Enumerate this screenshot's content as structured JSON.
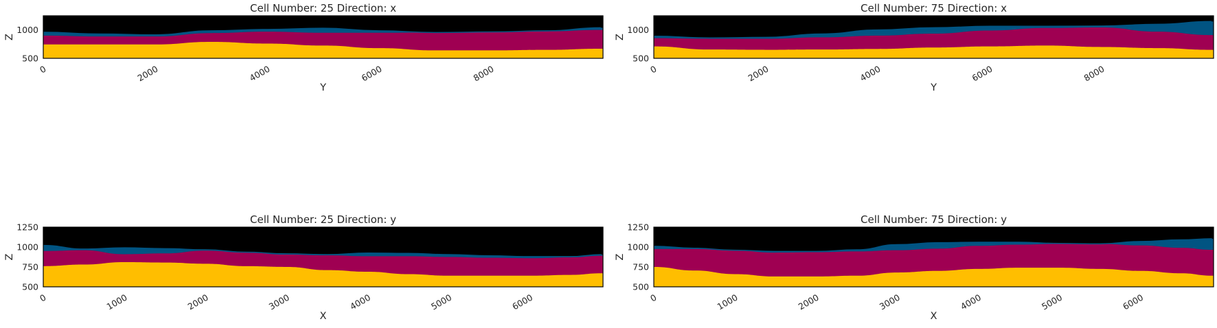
{
  "colors": {
    "background": "#000000",
    "layer_blue": "#015482",
    "layer_crimson": "#9f0052",
    "layer_yellow": "#ffbe00",
    "axis": "#000000",
    "text": "#262626"
  },
  "chart_data": [
    {
      "type": "area",
      "title": "Cell Number: 25 Direction: x",
      "xlabel": "Y",
      "ylabel": "Z",
      "xlim": [
        0,
        10000
      ],
      "ylim": [
        500,
        1250
      ],
      "xticks": [
        "0",
        "2000",
        "4000",
        "6000",
        "8000"
      ],
      "yticks": [
        "500",
        "1000"
      ],
      "grid": false,
      "x": [
        0,
        1000,
        2000,
        3000,
        4000,
        5000,
        6000,
        7000,
        8000,
        9000,
        9960
      ],
      "series": [
        {
          "color": "layer_blue",
          "top": [
            960,
            930,
            915,
            985,
            1010,
            1030,
            985,
            955,
            965,
            985,
            1040
          ]
        },
        {
          "color": "layer_crimson",
          "top": [
            900,
            885,
            885,
            945,
            970,
            950,
            950,
            955,
            960,
            975,
            1000
          ]
        },
        {
          "color": "layer_yellow",
          "top": [
            745,
            745,
            745,
            790,
            760,
            725,
            680,
            640,
            640,
            650,
            670
          ]
        }
      ]
    },
    {
      "type": "area",
      "title": "Cell Number: 75 Direction: x",
      "xlabel": "Y",
      "ylabel": "Z",
      "xlim": [
        0,
        10000
      ],
      "ylim": [
        500,
        1250
      ],
      "xticks": [
        "0",
        "2000",
        "4000",
        "6000",
        "8000"
      ],
      "yticks": [
        "500",
        "1000"
      ],
      "grid": false,
      "x": [
        0,
        1000,
        2000,
        3000,
        4000,
        5000,
        6000,
        7000,
        8000,
        9000,
        9960
      ],
      "series": [
        {
          "color": "layer_blue",
          "top": [
            890,
            860,
            870,
            930,
            1000,
            1040,
            1065,
            1065,
            1070,
            1100,
            1150
          ]
        },
        {
          "color": "layer_crimson",
          "top": [
            855,
            845,
            845,
            870,
            900,
            935,
            990,
            1035,
            1045,
            970,
            910
          ]
        },
        {
          "color": "layer_yellow",
          "top": [
            710,
            655,
            650,
            655,
            665,
            690,
            710,
            725,
            700,
            680,
            650
          ]
        }
      ]
    },
    {
      "type": "area",
      "title": "Cell Number: 25 Direction: y",
      "xlabel": "X",
      "ylabel": "Z",
      "xlim": [
        0,
        6900
      ],
      "ylim": [
        500,
        1250
      ],
      "xticks": [
        "0",
        "1000",
        "2000",
        "3000",
        "4000",
        "5000",
        "6000"
      ],
      "yticks": [
        "500",
        "750",
        "1000",
        "1250"
      ],
      "grid": false,
      "x": [
        0,
        500,
        1000,
        1500,
        2000,
        2500,
        3000,
        3500,
        4000,
        4500,
        5000,
        5500,
        6000,
        6500,
        6880
      ],
      "series": [
        {
          "color": "layer_blue",
          "top": [
            1020,
            975,
            990,
            980,
            965,
            935,
            915,
            905,
            925,
            920,
            905,
            890,
            880,
            880,
            905
          ]
        },
        {
          "color": "layer_crimson",
          "top": [
            950,
            960,
            910,
            920,
            955,
            930,
            905,
            895,
            885,
            885,
            875,
            865,
            860,
            870,
            890
          ]
        },
        {
          "color": "layer_yellow",
          "top": [
            760,
            780,
            810,
            805,
            790,
            760,
            750,
            710,
            690,
            660,
            640,
            640,
            640,
            650,
            670
          ]
        }
      ]
    },
    {
      "type": "area",
      "title": "Cell Number: 75 Direction: y",
      "xlabel": "X",
      "ylabel": "Z",
      "xlim": [
        0,
        6900
      ],
      "ylim": [
        500,
        1250
      ],
      "xticks": [
        "0",
        "1000",
        "2000",
        "3000",
        "4000",
        "5000",
        "6000"
      ],
      "yticks": [
        "500",
        "750",
        "1000",
        "1250"
      ],
      "grid": false,
      "x": [
        0,
        500,
        1000,
        1500,
        2000,
        2500,
        3000,
        3500,
        4000,
        4500,
        5000,
        5500,
        6000,
        6500,
        6880
      ],
      "series": [
        {
          "color": "layer_blue",
          "top": [
            1010,
            985,
            960,
            945,
            945,
            965,
            1030,
            1055,
            1060,
            1060,
            1045,
            1040,
            1070,
            1090,
            1105
          ]
        },
        {
          "color": "layer_crimson",
          "top": [
            975,
            975,
            955,
            930,
            935,
            945,
            960,
            980,
            1015,
            1030,
            1040,
            1040,
            1020,
            990,
            965
          ]
        },
        {
          "color": "layer_yellow",
          "top": [
            750,
            705,
            660,
            630,
            630,
            640,
            680,
            700,
            725,
            740,
            740,
            725,
            700,
            670,
            640
          ]
        }
      ]
    }
  ]
}
